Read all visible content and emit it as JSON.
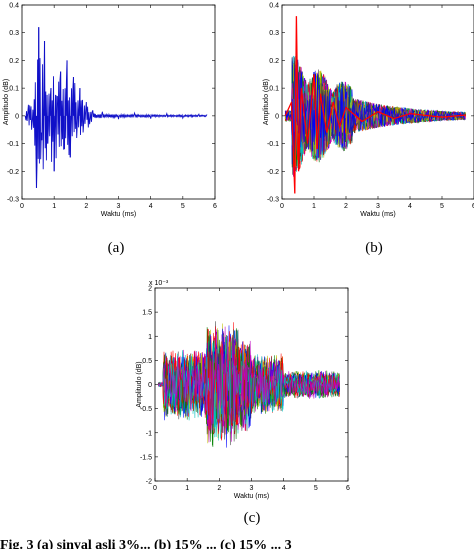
{
  "chart_data": [
    {
      "type": "line",
      "id": "a",
      "caption": "(a)",
      "xlabel": "Waktu (ms)",
      "ylabel": "Amplitudo (dB)",
      "xlim": [
        0,
        6
      ],
      "ylim": [
        -0.3,
        0.4
      ],
      "xticks": [
        "0",
        "1",
        "2",
        "3",
        "4",
        "5",
        "6"
      ],
      "yticks": [
        "-0.3",
        "-0.2",
        "-0.1",
        "0",
        "0.1",
        "0.2",
        "0.3",
        "0.4"
      ],
      "exponent_label": "",
      "grid": false,
      "series": [
        {
          "color": "#1010c8",
          "x": [
            0.1,
            0.2,
            0.3,
            0.38,
            0.45,
            0.52,
            0.6,
            0.7,
            0.8,
            0.9,
            1.0,
            1.1,
            1.2,
            1.3,
            1.4,
            1.5,
            1.6,
            1.7,
            1.8,
            1.9,
            2.0,
            2.1,
            2.2,
            2.5,
            3.0,
            3.5,
            4.0,
            4.5,
            5.0,
            5.5,
            5.75
          ],
          "y": [
            0.0,
            0.04,
            -0.05,
            0.06,
            -0.26,
            0.32,
            -0.06,
            0.27,
            -0.1,
            0.1,
            -0.2,
            0.07,
            0.16,
            -0.12,
            0.2,
            -0.15,
            0.14,
            -0.08,
            0.1,
            -0.06,
            0.05,
            -0.03,
            0.02,
            0.015,
            -0.012,
            0.01,
            -0.01,
            0.008,
            -0.008,
            0.006,
            0.005
          ]
        }
      ]
    },
    {
      "type": "line",
      "id": "b",
      "caption": "(b)",
      "xlabel": "Waktu (ms)",
      "ylabel": "Amplitudo (dB)",
      "xlim": [
        0,
        6
      ],
      "ylim": [
        -0.3,
        0.4
      ],
      "xticks": [
        "0",
        "1",
        "2",
        "3",
        "4",
        "5",
        "6"
      ],
      "yticks": [
        "-0.3",
        "-0.2",
        "-0.1",
        "0",
        "0.1",
        "0.2",
        "0.3",
        "0.4"
      ],
      "exponent_label": "",
      "grid": false,
      "palette": [
        "#0000ff",
        "#008000",
        "#ff0000",
        "#00bfbf",
        "#bf00bf",
        "#bfbf00",
        "#404040"
      ],
      "highlight_series": {
        "color": "#ff0000",
        "x": [
          0.1,
          0.3,
          0.4,
          0.45,
          0.52,
          0.6,
          0.8,
          1.0,
          1.1,
          1.2,
          1.4,
          1.6,
          1.8,
          2.0,
          2.5,
          3.0,
          3.5,
          4.0,
          5.0,
          5.75
        ],
        "y": [
          0.0,
          0.05,
          -0.28,
          0.36,
          -0.2,
          0.1,
          -0.1,
          0.15,
          -0.12,
          0.08,
          -0.06,
          0.05,
          -0.04,
          0.03,
          -0.02,
          0.015,
          -0.01,
          0.008,
          -0.005,
          0.003
        ]
      }
    },
    {
      "type": "line",
      "id": "c",
      "caption": "(c)",
      "xlabel": "Waktu (ms)",
      "ylabel": "Amplitudo (dB)",
      "xlim": [
        0,
        6
      ],
      "ylim": [
        -2,
        2
      ],
      "xticks": [
        "0",
        "1",
        "2",
        "3",
        "4",
        "5",
        "6"
      ],
      "yticks": [
        "-2",
        "-1.5",
        "-1",
        "-0.5",
        "0",
        "0.5",
        "1",
        "1.5",
        "2"
      ],
      "exponent_label": "x 10⁻³",
      "grid": false,
      "palette": [
        "#0000ff",
        "#008000",
        "#ff0000",
        "#00bfbf",
        "#bf00bf",
        "#bfbf00",
        "#404040"
      ]
    }
  ],
  "footer_text": "Fig. 3 (a) sinyal asli 3%... (b) 15% ... (c) 15% ... 3"
}
